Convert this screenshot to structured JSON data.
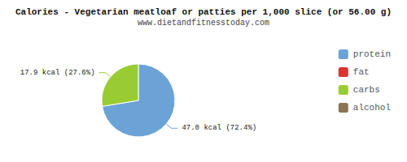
{
  "chart_data": {
    "type": "pie",
    "title": "Calories - Vegetarian meatloaf or patties per 1,000 slice (or 56.00 g)",
    "subtitle": "www.dietandfitnesstoday.com",
    "categories": [
      "protein",
      "fat",
      "carbs",
      "alcohol"
    ],
    "values": [
      72.4,
      null,
      27.6,
      null
    ],
    "value_labels": [
      "47.0 kcal (72.4%)",
      null,
      "17.9 kcal (27.6%)",
      null
    ],
    "colors": [
      "#6ba3d6",
      "#dd3333",
      "#99cc33",
      "#8b7355"
    ],
    "legend": "right",
    "data_labels": true
  }
}
